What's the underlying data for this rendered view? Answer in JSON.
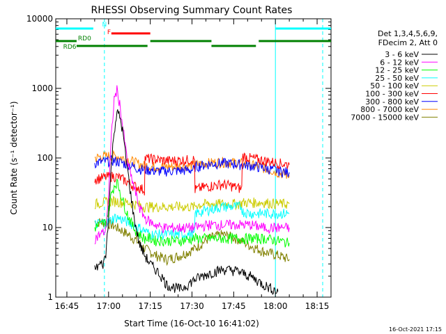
{
  "chart_data": {
    "type": "line",
    "title": "RHESSI Observing Summary Count Rates",
    "xlabel": "Start Time (16-Oct-10 16:41:02)",
    "ylabel": "Count Rate (s⁻¹ detector⁻¹)",
    "x_unit": "minutes since 16:41:02",
    "xlim": [
      0,
      99
    ],
    "ylim": [
      1,
      10000
    ],
    "yscale": "log",
    "x_ticks": [
      {
        "x": 4,
        "label": "16:45"
      },
      {
        "x": 19,
        "label": "17:00"
      },
      {
        "x": 34,
        "label": "17:15"
      },
      {
        "x": 49,
        "label": "17:30"
      },
      {
        "x": 64,
        "label": "17:45"
      },
      {
        "x": 79,
        "label": "18:00"
      },
      {
        "x": 94,
        "label": "18:15"
      }
    ],
    "y_ticks": [
      {
        "y": 1,
        "label": "1"
      },
      {
        "y": 10,
        "label": "10"
      },
      {
        "y": 100,
        "label": "100"
      },
      {
        "y": 1000,
        "label": "1000"
      },
      {
        "y": 10000,
        "label": "10000"
      }
    ],
    "legend_header": [
      "Det 1,3,4,5,6,9,",
      "FDecim 2, Att 0"
    ],
    "legend_position": "right",
    "series": [
      {
        "name": "3 - 6 keV",
        "color": "#000000",
        "x": [
          14,
          16,
          17,
          18,
          19,
          20,
          21,
          22,
          23,
          24,
          25,
          26,
          27,
          28,
          30,
          32,
          34,
          36,
          38,
          40,
          45,
          50,
          55,
          60,
          65,
          70,
          75,
          79.9
        ],
        "y": [
          2.5,
          3,
          3,
          4,
          15,
          80,
          250,
          450,
          400,
          250,
          120,
          60,
          30,
          15,
          6,
          4,
          3,
          2.5,
          2,
          1.5,
          1.3,
          1.8,
          2.2,
          2.5,
          2.4,
          2,
          1.5,
          1.2
        ]
      },
      {
        "name": "6 - 12 keV",
        "color": "#ff00ff",
        "x": [
          14,
          16,
          18,
          19,
          20,
          21,
          22,
          23,
          24,
          25,
          26,
          28,
          30,
          32,
          34,
          36,
          38,
          40,
          45,
          50,
          55,
          60,
          65,
          70,
          75,
          80,
          84
        ],
        "y": [
          7,
          8,
          9,
          30,
          200,
          700,
          950,
          600,
          300,
          150,
          80,
          40,
          20,
          14,
          12,
          11,
          10,
          10,
          10,
          10,
          11,
          11,
          11,
          11,
          10,
          10,
          10
        ]
      },
      {
        "name": "12 - 25 keV",
        "color": "#00ff00",
        "x": [
          14,
          16,
          18,
          19,
          20,
          21,
          22,
          23,
          24,
          26,
          28,
          30,
          32,
          34,
          36,
          40,
          45,
          50,
          55,
          60,
          65,
          70,
          75,
          80,
          84
        ],
        "y": [
          10,
          11,
          12,
          18,
          30,
          40,
          45,
          35,
          25,
          15,
          10,
          8,
          7,
          7,
          6.5,
          6.5,
          6.5,
          7,
          7,
          7,
          7,
          7,
          7,
          6.5,
          6
        ]
      },
      {
        "name": "25 - 50 keV",
        "color": "#00ffff",
        "x": [
          14,
          17,
          19,
          20,
          21,
          22,
          24,
          26,
          28,
          30,
          32,
          34,
          36,
          40,
          45,
          49.9,
          50.1,
          55,
          60,
          65,
          66.9,
          67.1,
          70,
          75,
          80,
          84
        ],
        "y": [
          11,
          12,
          12,
          13,
          14,
          14,
          13,
          12,
          11,
          10,
          9,
          8,
          8,
          8,
          8,
          8,
          16,
          18,
          20,
          20,
          20,
          17,
          16,
          16,
          16,
          16
        ]
      },
      {
        "name": "50 - 100 keV",
        "color": "#cccc00",
        "x": [
          14,
          17,
          20,
          22,
          24,
          26,
          28,
          30,
          32,
          34,
          36,
          40,
          45,
          49.9,
          50.1,
          55,
          60,
          65,
          66.9,
          67.1,
          70,
          75,
          80,
          84
        ],
        "y": [
          22,
          23,
          24,
          24,
          23,
          23,
          22,
          21,
          20,
          20,
          20,
          20,
          20,
          20,
          21,
          22,
          22,
          22,
          22,
          23,
          23,
          23,
          22,
          22
        ]
      },
      {
        "name": "100 - 300 keV",
        "color": "#ff0000",
        "x": [
          14,
          17,
          20,
          22,
          24,
          26,
          28,
          31.9,
          32.1,
          36,
          40,
          45,
          49.9,
          50.1,
          53,
          56,
          60,
          63,
          66.9,
          67.1,
          70,
          75,
          80,
          84
        ],
        "y": [
          50,
          52,
          55,
          54,
          50,
          45,
          40,
          35,
          100,
          95,
          92,
          93,
          95,
          35,
          38,
          40,
          42,
          40,
          36,
          108,
          100,
          92,
          85,
          80
        ]
      },
      {
        "name": "300 - 800 keV",
        "color": "#0000ff",
        "x": [
          14,
          17,
          20,
          22,
          24,
          26,
          28,
          30,
          32,
          36,
          40,
          45,
          49.9,
          50.1,
          55,
          60,
          65,
          70,
          75,
          80,
          84
        ],
        "y": [
          85,
          88,
          92,
          90,
          85,
          80,
          75,
          70,
          68,
          65,
          65,
          66,
          68,
          75,
          82,
          85,
          82,
          78,
          72,
          66,
          62
        ]
      },
      {
        "name": "800 - 7000 keV",
        "color": "#ff8800",
        "x": [
          14,
          17,
          20,
          22,
          24,
          26,
          28,
          30,
          32,
          36,
          40,
          45,
          49.9,
          50.1,
          55,
          60,
          65,
          70,
          75,
          80,
          84
        ],
        "y": [
          100,
          105,
          108,
          106,
          100,
          95,
          88,
          82,
          78,
          75,
          75,
          77,
          78,
          80,
          85,
          88,
          86,
          80,
          72,
          62,
          56
        ]
      },
      {
        "name": "7000 - 15000 keV",
        "color": "#808000",
        "x": [
          14,
          17,
          20,
          22,
          24,
          26,
          28,
          30,
          32,
          34,
          36,
          40,
          45,
          50,
          55,
          60,
          65,
          70,
          75,
          80,
          84
        ],
        "y": [
          12,
          12,
          11,
          10,
          9,
          8,
          7,
          6,
          5,
          4.5,
          4,
          3.5,
          4,
          5,
          7,
          8,
          7,
          5.5,
          4.5,
          4,
          3.5
        ]
      }
    ],
    "annotations": [
      {
        "label": "N",
        "type": "bar",
        "color": "#00ffff",
        "segments": [
          [
            0,
            13.5
          ],
          [
            79,
            99
          ]
        ]
      },
      {
        "label": "F",
        "type": "bar",
        "color": "#ff0000",
        "segments": [
          [
            20,
            34
          ]
        ]
      },
      {
        "label": "RD0",
        "type": "bar",
        "color": "#008000",
        "segments": [
          [
            0,
            7.5
          ],
          [
            34,
            56
          ],
          [
            73,
            99
          ]
        ]
      },
      {
        "label": "RD6",
        "type": "bar",
        "color": "#008000",
        "segments": [
          [
            7.5,
            33
          ],
          [
            56,
            72
          ]
        ]
      }
    ],
    "vertical_lines": [
      {
        "x": 0,
        "color": "#00ffff",
        "style": "solid"
      },
      {
        "x": 17.5,
        "color": "#00ffff",
        "style": "dashed"
      },
      {
        "x": 79,
        "color": "#00ffff",
        "style": "solid"
      },
      {
        "x": 96,
        "color": "#00ffff",
        "style": "dashed"
      }
    ]
  },
  "footer": "16-Oct-2021 17:15"
}
